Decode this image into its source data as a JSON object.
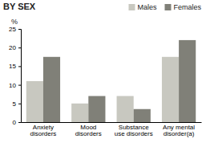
{
  "chart_data": {
    "type": "bar",
    "title": "BY SEX",
    "categories": [
      "Anxiety\ndisorders",
      "Mood\ndisorders",
      "Substance\nuse disorders",
      "Any mental\ndisorder(a)"
    ],
    "series": [
      {
        "name": "Males",
        "color": "#c8c8c0",
        "values": [
          11,
          5,
          7,
          17.5
        ]
      },
      {
        "name": "Females",
        "color": "#808078",
        "values": [
          17.5,
          7,
          3.5,
          22
        ]
      }
    ],
    "y_label": "%",
    "ylim": [
      0,
      25
    ],
    "yticks": [
      0,
      5,
      10,
      15,
      20,
      25
    ],
    "legend": "top"
  }
}
